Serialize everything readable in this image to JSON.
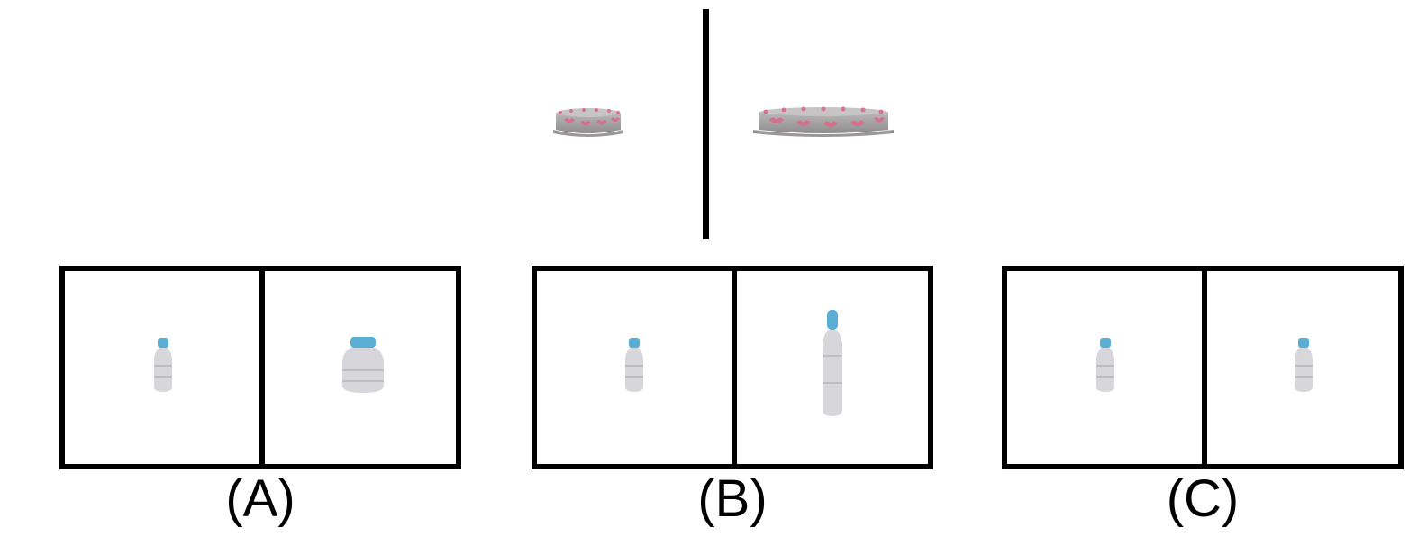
{
  "options": [
    {
      "label": "(A)"
    },
    {
      "label": "(B)"
    },
    {
      "label": "(C)"
    }
  ],
  "icons": {
    "reference": "cake-icon",
    "option_items": "bottle-icon"
  },
  "colors": {
    "frame": "#000000",
    "bottle_cap": "#5aaed3",
    "bottle_body": "#d7d6da",
    "cake_body": "#a9a6a8",
    "cake_hearts": "#d96c8a"
  }
}
